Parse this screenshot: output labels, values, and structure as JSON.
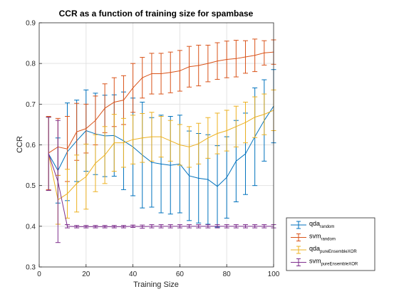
{
  "chart_data": {
    "type": "line",
    "title": "CCR as a function of training size for spambase",
    "xlabel": "Training Size",
    "ylabel": "CCR",
    "xlim": [
      0,
      100
    ],
    "ylim": [
      0.3,
      0.9
    ],
    "xticks": [
      "0",
      "20",
      "40",
      "60",
      "80",
      "100"
    ],
    "yticks": [
      "0.3",
      "0.4",
      "0.5",
      "0.6",
      "0.7",
      "0.8",
      "0.9"
    ],
    "grid": true,
    "legend_position": "bottom-right-outside",
    "x": [
      4,
      8,
      12,
      16,
      20,
      24,
      28,
      32,
      36,
      40,
      44,
      48,
      52,
      56,
      60,
      64,
      68,
      72,
      76,
      80,
      84,
      88,
      92,
      96,
      100
    ],
    "series": [
      {
        "name": "qda",
        "name_sub": "random",
        "color": "#0072BD",
        "values": [
          0.578,
          0.537,
          0.583,
          0.61,
          0.635,
          0.627,
          0.622,
          0.623,
          0.61,
          0.595,
          0.575,
          0.557,
          0.553,
          0.55,
          0.553,
          0.524,
          0.518,
          0.515,
          0.498,
          0.52,
          0.56,
          0.578,
          0.62,
          0.66,
          0.695
        ],
        "errors": [
          0.09,
          0.08,
          0.12,
          0.1,
          0.1,
          0.1,
          0.1,
          0.1,
          0.12,
          0.12,
          0.13,
          0.11,
          0.12,
          0.12,
          0.12,
          0.11,
          0.11,
          0.11,
          0.1,
          0.1,
          0.1,
          0.1,
          0.12,
          0.1,
          0.09
        ]
      },
      {
        "name": "svm",
        "name_sub": "random",
        "color": "#D95319",
        "values": [
          0.58,
          0.595,
          0.59,
          0.632,
          0.64,
          0.66,
          0.69,
          0.705,
          0.71,
          0.74,
          0.765,
          0.775,
          0.775,
          0.778,
          0.782,
          0.792,
          0.795,
          0.8,
          0.806,
          0.81,
          0.812,
          0.816,
          0.82,
          0.826,
          0.828
        ],
        "errors": [
          0.09,
          0.07,
          0.08,
          0.07,
          0.06,
          0.06,
          0.06,
          0.06,
          0.06,
          0.06,
          0.05,
          0.05,
          0.05,
          0.05,
          0.05,
          0.05,
          0.05,
          0.045,
          0.045,
          0.045,
          0.045,
          0.04,
          0.04,
          0.03,
          0.03
        ]
      },
      {
        "name": "qda",
        "name_sub": "pureEnsembleXOR",
        "color": "#EDB120",
        "values": [
          0.578,
          0.465,
          0.48,
          0.505,
          0.522,
          0.555,
          0.575,
          0.605,
          0.605,
          0.613,
          0.617,
          0.62,
          0.62,
          0.61,
          0.6,
          0.595,
          0.603,
          0.617,
          0.628,
          0.635,
          0.645,
          0.655,
          0.668,
          0.675,
          0.685
        ],
        "errors": [
          0.09,
          0.06,
          0.06,
          0.07,
          0.08,
          0.07,
          0.07,
          0.07,
          0.06,
          0.06,
          0.06,
          0.06,
          0.05,
          0.05,
          0.05,
          0.05,
          0.05,
          0.05,
          0.05,
          0.05,
          0.05,
          0.05,
          0.05,
          0.05,
          0.05
        ]
      },
      {
        "name": "svm",
        "name_sub": "pureEnsembleXOR",
        "color": "#7E2F8E",
        "values": [
          0.578,
          0.51,
          0.4,
          0.399,
          0.399,
          0.399,
          0.399,
          0.399,
          0.399,
          0.4,
          0.399,
          0.4,
          0.4,
          0.4,
          0.4,
          0.4,
          0.4,
          0.4,
          0.4,
          0.4,
          0.4,
          0.4,
          0.4,
          0.4,
          0.4
        ],
        "errors": [
          0.09,
          0.15,
          0.004,
          0.003,
          0.003,
          0.003,
          0.003,
          0.003,
          0.003,
          0.003,
          0.004,
          0.004,
          0.004,
          0.004,
          0.004,
          0.004,
          0.004,
          0.004,
          0.004,
          0.004,
          0.004,
          0.004,
          0.004,
          0.004,
          0.004
        ]
      }
    ]
  }
}
